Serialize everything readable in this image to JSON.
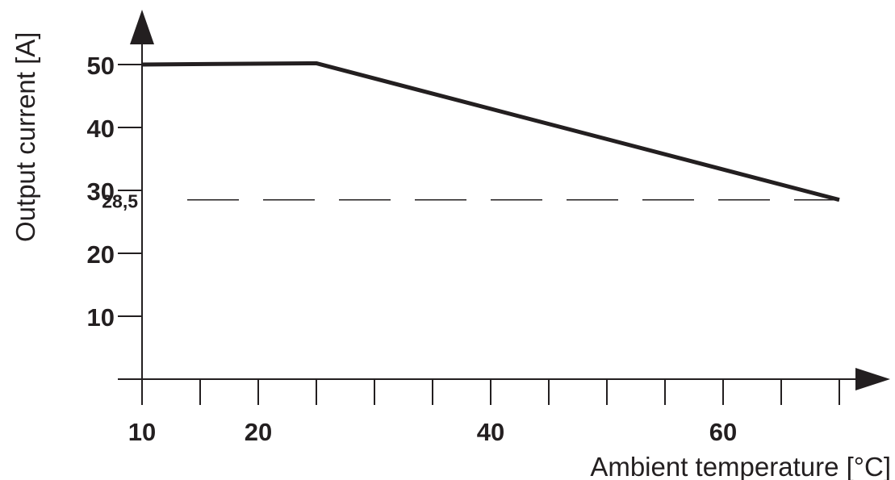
{
  "chart_data": {
    "type": "line",
    "title": "",
    "xlabel": "Ambient temperature [°C]",
    "ylabel": "Output current [A]",
    "xlim": [
      10,
      70
    ],
    "ylim": [
      0,
      55
    ],
    "x_tick_labels": [
      "10",
      "20",
      "40",
      "60"
    ],
    "x_tick_values": [
      10,
      20,
      40,
      60
    ],
    "x_minor_ticks": [
      15,
      25,
      30,
      35,
      45,
      50,
      55,
      65,
      70
    ],
    "y_tick_labels": [
      "10",
      "20",
      "30",
      "40",
      "50"
    ],
    "y_tick_values": [
      10,
      20,
      30,
      40,
      50
    ],
    "series": [
      {
        "x": [
          10,
          25,
          70
        ],
        "y": [
          50,
          50.2,
          28.5
        ]
      }
    ],
    "reference_line": {
      "label": "28,5",
      "y": 28.5,
      "style": "dashed"
    },
    "grid": false,
    "colors": {
      "line": "#231f20",
      "axis": "#231f20"
    }
  }
}
